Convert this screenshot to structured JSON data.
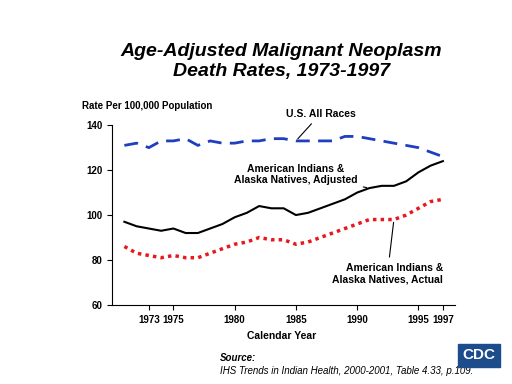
{
  "chart_data": {
    "type": "line",
    "title": "Age-Adjusted Malignant Neoplasm\nDeath Rates, 1973-1997",
    "y_label": "Rate Per 100,000 Population",
    "x_label": "Calendar Year",
    "source_label": "Source:",
    "source": "IHS Trends in Indian Health, 2000-2001, Table 4.33, p.109.",
    "logo": "CDC",
    "x": [
      1971,
      1972,
      1973,
      1974,
      1975,
      1976,
      1977,
      1978,
      1979,
      1980,
      1981,
      1982,
      1983,
      1984,
      1985,
      1986,
      1987,
      1988,
      1989,
      1990,
      1991,
      1992,
      1993,
      1994,
      1995,
      1996,
      1997
    ],
    "series": [
      {
        "name": "U.S. All Races",
        "color": "#1f3fbf",
        "line_style": "dashed",
        "values": [
          131,
          132,
          130,
          133,
          133,
          134,
          131,
          133,
          132,
          132,
          133,
          133,
          134,
          134,
          133,
          133,
          133,
          133,
          135,
          135,
          134,
          133,
          132,
          131,
          130,
          128,
          126
        ]
      },
      {
        "name": "American Indians &\nAlaska Natives, Adjusted",
        "color": "#000000",
        "line_style": "solid",
        "values": [
          97,
          95,
          94,
          93,
          94,
          92,
          92,
          94,
          96,
          99,
          101,
          104,
          103,
          103,
          100,
          101,
          103,
          105,
          107,
          110,
          112,
          113,
          113,
          115,
          119,
          122,
          124
        ]
      },
      {
        "name": "American Indians &\nAlaska Natives, Actual",
        "color": "#e8181d",
        "line_style": "dotted",
        "values": [
          86,
          83,
          82,
          81,
          82,
          81,
          81,
          83,
          85,
          87,
          88,
          90,
          89,
          89,
          87,
          88,
          90,
          92,
          94,
          96,
          98,
          98,
          98,
          100,
          103,
          106,
          107
        ]
      }
    ],
    "xlim": [
      1970,
      1998
    ],
    "xticks": [
      1973,
      1975,
      1980,
      1985,
      1990,
      1995,
      1997
    ],
    "ylim": [
      60,
      140
    ],
    "yticks": [
      60,
      80,
      100,
      120,
      140
    ],
    "grid": false
  }
}
